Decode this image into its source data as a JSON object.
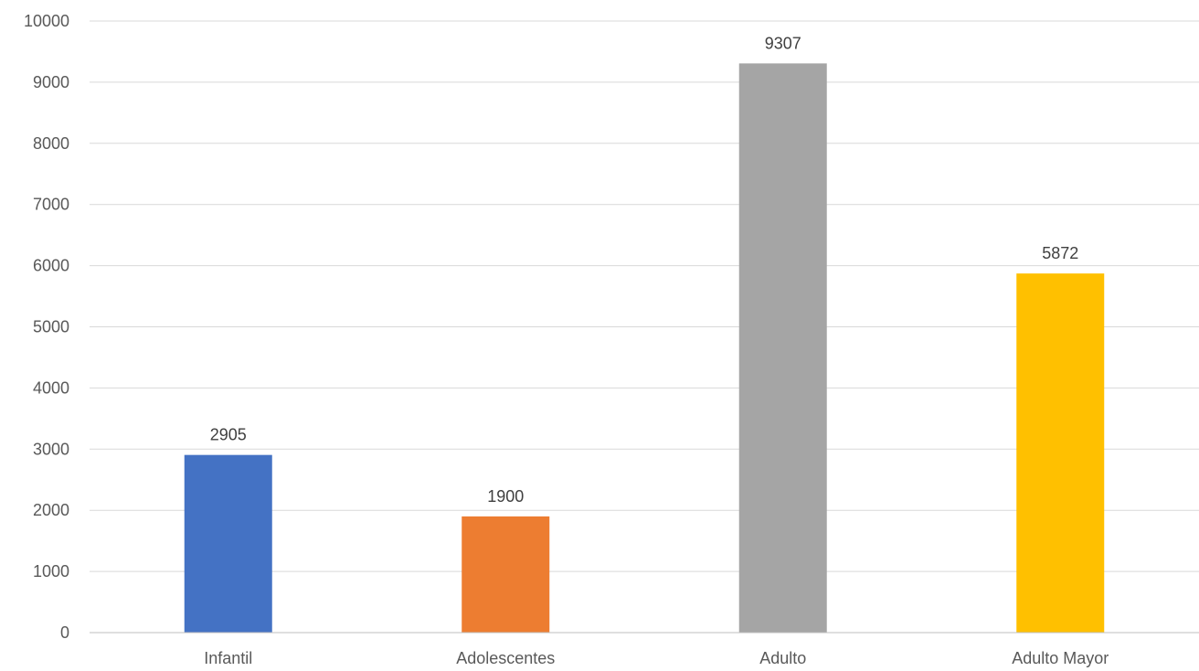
{
  "chart_data": {
    "type": "bar",
    "categories": [
      "Infantil",
      "Adolescentes",
      "Adulto",
      "Adulto Mayor"
    ],
    "values": [
      2905,
      1900,
      9307,
      5872
    ],
    "data_labels": [
      "2905",
      "1900",
      "9307",
      "5872"
    ],
    "colors": [
      "#4472c4",
      "#ed7d31",
      "#a5a5a5",
      "#ffc000"
    ],
    "ylim": [
      0,
      10000
    ],
    "y_ticks": [
      0,
      1000,
      2000,
      3000,
      4000,
      5000,
      6000,
      7000,
      8000,
      9000,
      10000
    ],
    "y_tick_labels": [
      "0",
      "1000",
      "2000",
      "3000",
      "4000",
      "5000",
      "6000",
      "7000",
      "8000",
      "9000",
      "10000"
    ],
    "grid": true,
    "legend": "none",
    "title": "",
    "xlabel": "",
    "ylabel": ""
  }
}
